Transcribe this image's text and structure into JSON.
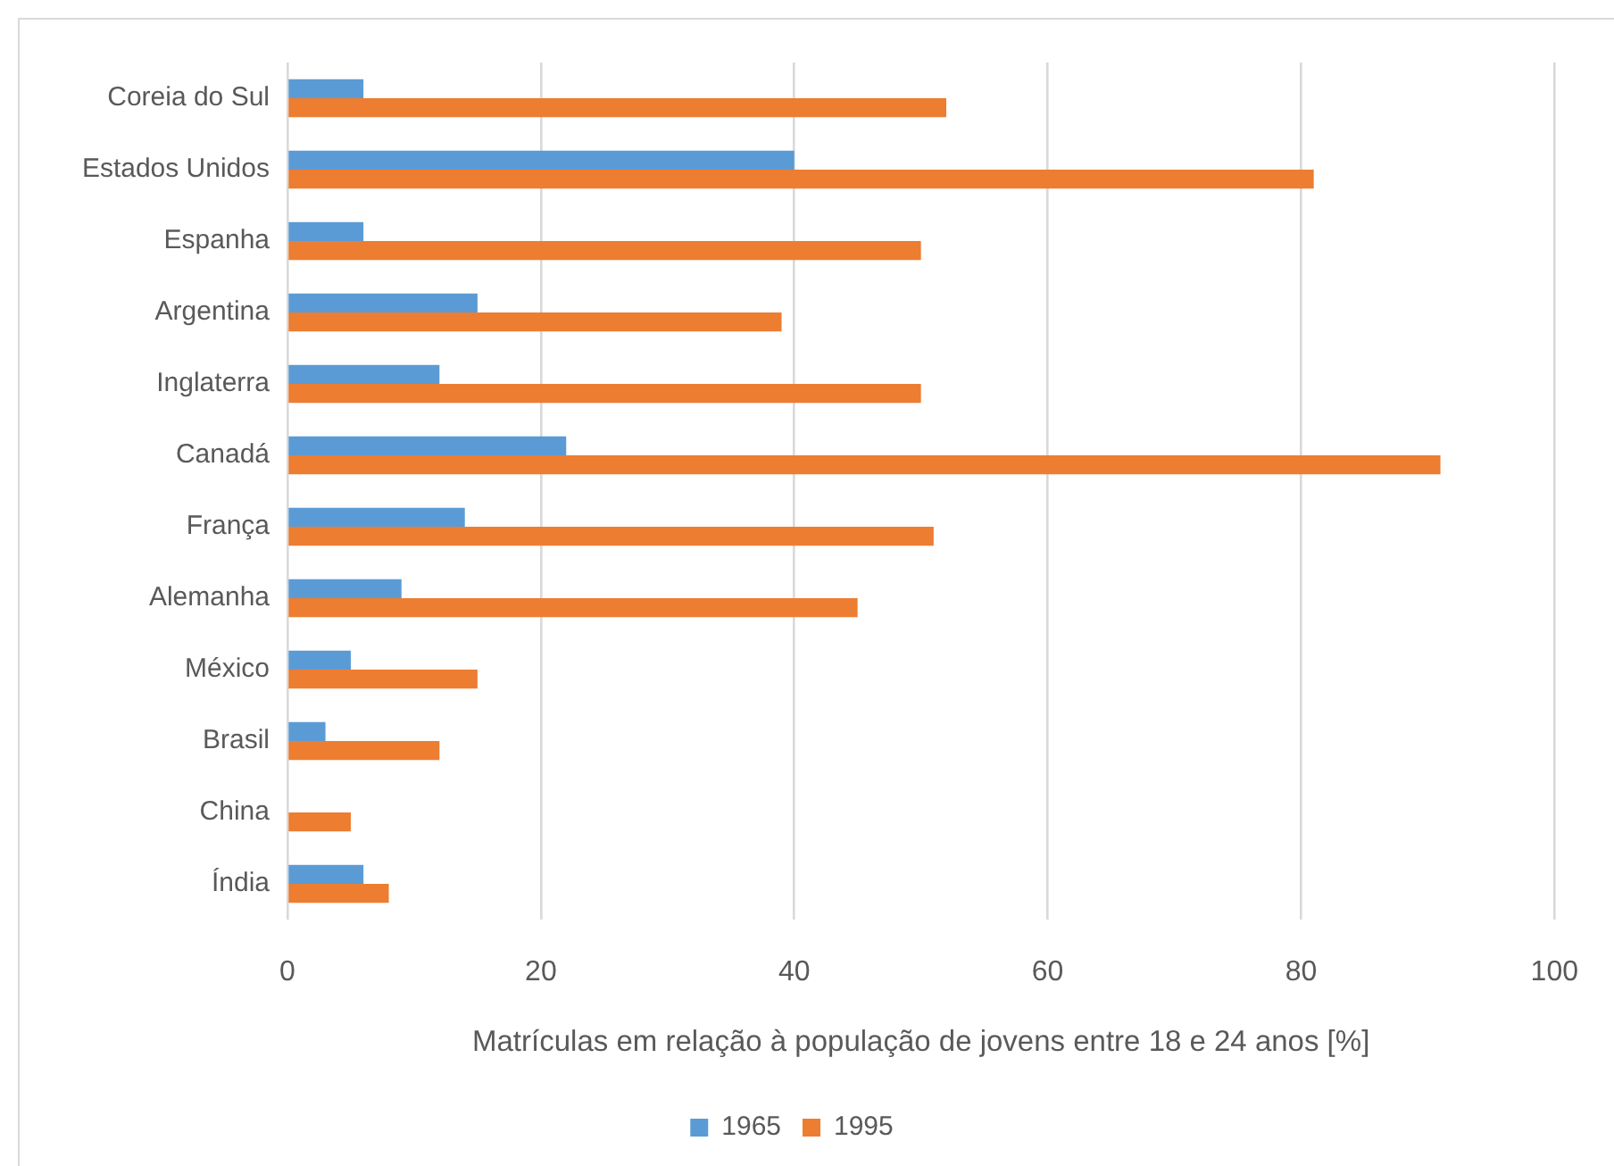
{
  "chart_data": {
    "type": "bar",
    "orientation": "horizontal",
    "xlabel": "Matrículas em relação à população de jovens entre 18 e 24 anos [%]",
    "categories": [
      "Coreia do Sul",
      "Estados Unidos",
      "Espanha",
      "Argentina",
      "Inglaterra",
      "Canadá",
      "França",
      "Alemanha",
      "México",
      "Brasil",
      "China",
      "Índia"
    ],
    "series": [
      {
        "name": "1965",
        "color": "#5b9bd5",
        "values": [
          6,
          40,
          6,
          15,
          12,
          22,
          14,
          9,
          5,
          3,
          null,
          6
        ]
      },
      {
        "name": "1995",
        "color": "#ed7d31",
        "values": [
          52,
          81,
          50,
          39,
          50,
          91,
          51,
          45,
          15,
          12,
          5,
          8
        ]
      }
    ],
    "xlim": [
      0,
      100
    ],
    "xticks": [
      0,
      20,
      40,
      60,
      80,
      100
    ],
    "grid": "x",
    "legend": "bottom"
  }
}
